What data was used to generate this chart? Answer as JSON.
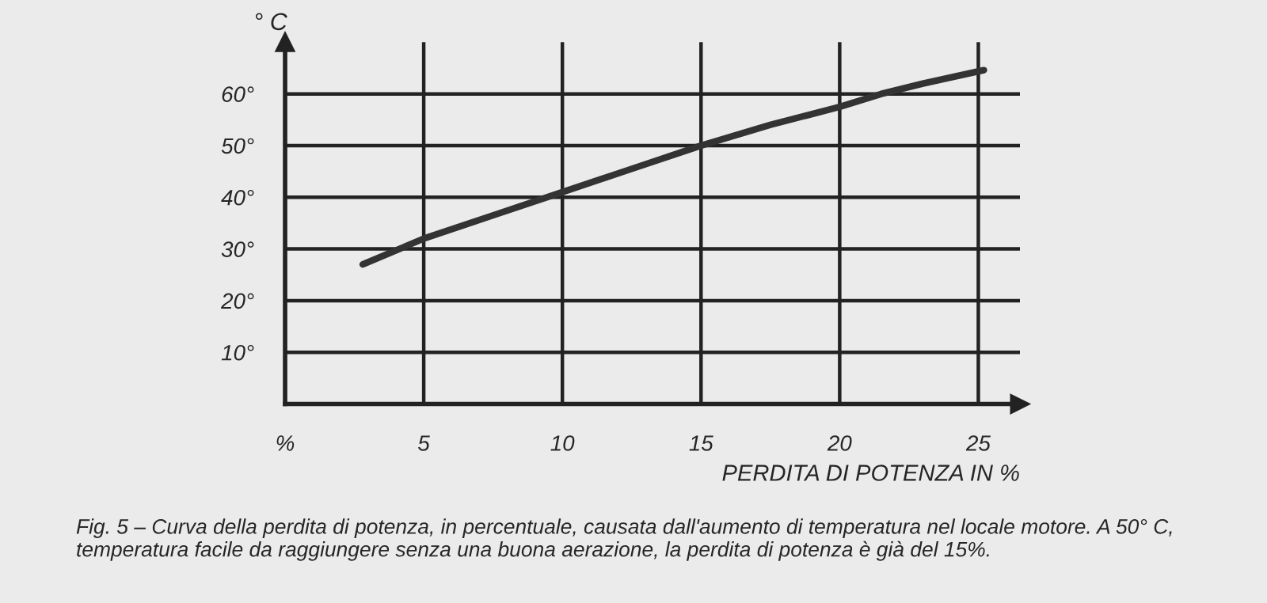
{
  "chart_data": {
    "type": "line",
    "ylabel": "° C",
    "xlabel": "PERDITA DI POTENZA IN %",
    "x": [
      2.8,
      5,
      7.5,
      10,
      12.5,
      15,
      17.5,
      20,
      21.5,
      23,
      25.2
    ],
    "series": [
      {
        "color": "#333333",
        "values": [
          27,
          32,
          36.5,
          41,
          45.5,
          50,
          54,
          57.5,
          60,
          62,
          64.6
        ]
      }
    ],
    "xlim": [
      0,
      26.5
    ],
    "ylim": [
      0,
      70
    ],
    "xticks": [
      {
        "value": 0,
        "label": "%"
      },
      5,
      10,
      15,
      20,
      25
    ],
    "yticks": [
      {
        "value": 0,
        "label": null
      },
      {
        "value": 10,
        "label": "10°"
      },
      {
        "value": 20,
        "label": "20°"
      },
      {
        "value": 30,
        "label": "30°"
      },
      {
        "value": 40,
        "label": "40°"
      },
      {
        "value": 50,
        "label": "50°"
      },
      {
        "value": 60,
        "label": "60°"
      }
    ],
    "grid": true,
    "marker": "none",
    "line_style": "solid",
    "annotations": [
      "Fig. 5 – Curva della perdita di potenza, in percentuale, causata dall'aumento di temperatura nel locale motore. A 50° C, temperatura facile da raggiungere senza una buona aerazione, la perdita di potenza è già del 15%."
    ]
  }
}
